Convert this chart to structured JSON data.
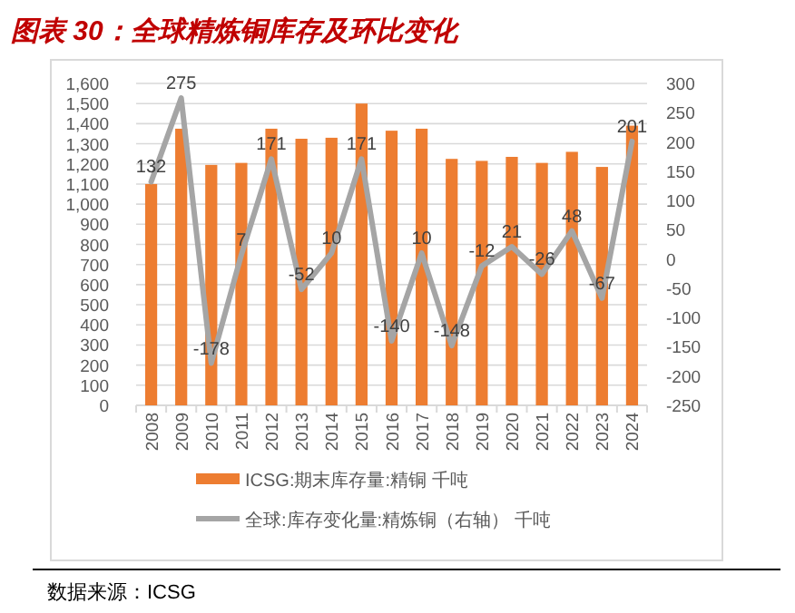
{
  "chart_data": {
    "type": "bar",
    "title": "图表 30：全球精炼铜库存及环比变化",
    "categories": [
      "2008",
      "2009",
      "2010",
      "2011",
      "2012",
      "2013",
      "2014",
      "2015",
      "2016",
      "2017",
      "2018",
      "2019",
      "2020",
      "2021",
      "2022",
      "2023",
      "2024"
    ],
    "series": [
      {
        "name": "ICSG:期末库存量:精铜 千吨",
        "color": "#ed7d31",
        "values": [
          1100,
          1375,
          1195,
          1205,
          1375,
          1325,
          1330,
          1500,
          1365,
          1375,
          1225,
          1215,
          1235,
          1205,
          1260,
          1185,
          1390
        ]
      },
      {
        "name": "全球:库存变化量:精炼铜（右轴） 千吨",
        "type": "line",
        "axis": "y2",
        "color": "#a5a5a5",
        "values": [
          132,
          275,
          -178,
          7,
          171,
          -52,
          10,
          171,
          -140,
          10,
          -148,
          -12,
          21,
          -26,
          48,
          -67,
          201
        ],
        "value_labels": [
          "132",
          "275",
          "-178",
          "7",
          "171",
          "-52",
          "10",
          "171",
          "-140",
          "10",
          "-148",
          "-12",
          "21",
          "-26",
          "48",
          "-67",
          "201"
        ]
      }
    ],
    "ylim": [
      0,
      1600
    ],
    "yticks": [
      {
        "value": 0,
        "label": "0"
      },
      {
        "value": 100,
        "label": "100"
      },
      {
        "value": 200,
        "label": "200"
      },
      {
        "value": 300,
        "label": "300"
      },
      {
        "value": 400,
        "label": "400"
      },
      {
        "value": 500,
        "label": "500"
      },
      {
        "value": 600,
        "label": "600"
      },
      {
        "value": 700,
        "label": "700"
      },
      {
        "value": 800,
        "label": "800"
      },
      {
        "value": 900,
        "label": "900"
      },
      {
        "value": 1000,
        "label": "1,000"
      },
      {
        "value": 1100,
        "label": "1,100"
      },
      {
        "value": 1200,
        "label": "1,200"
      },
      {
        "value": 1300,
        "label": "1,300"
      },
      {
        "value": 1400,
        "label": "1,400"
      },
      {
        "value": 1500,
        "label": "1,500"
      },
      {
        "value": 1600,
        "label": "1,600"
      }
    ],
    "y2lim": [
      -250,
      300
    ],
    "y2ticks": [
      -250,
      -200,
      -150,
      -100,
      -50,
      0,
      50,
      100,
      150,
      200,
      250,
      300
    ],
    "grid": "y",
    "legend": "bottom",
    "marker": "none",
    "line_style": "solid",
    "annotations": [
      "数据来源：ICSG"
    ]
  }
}
